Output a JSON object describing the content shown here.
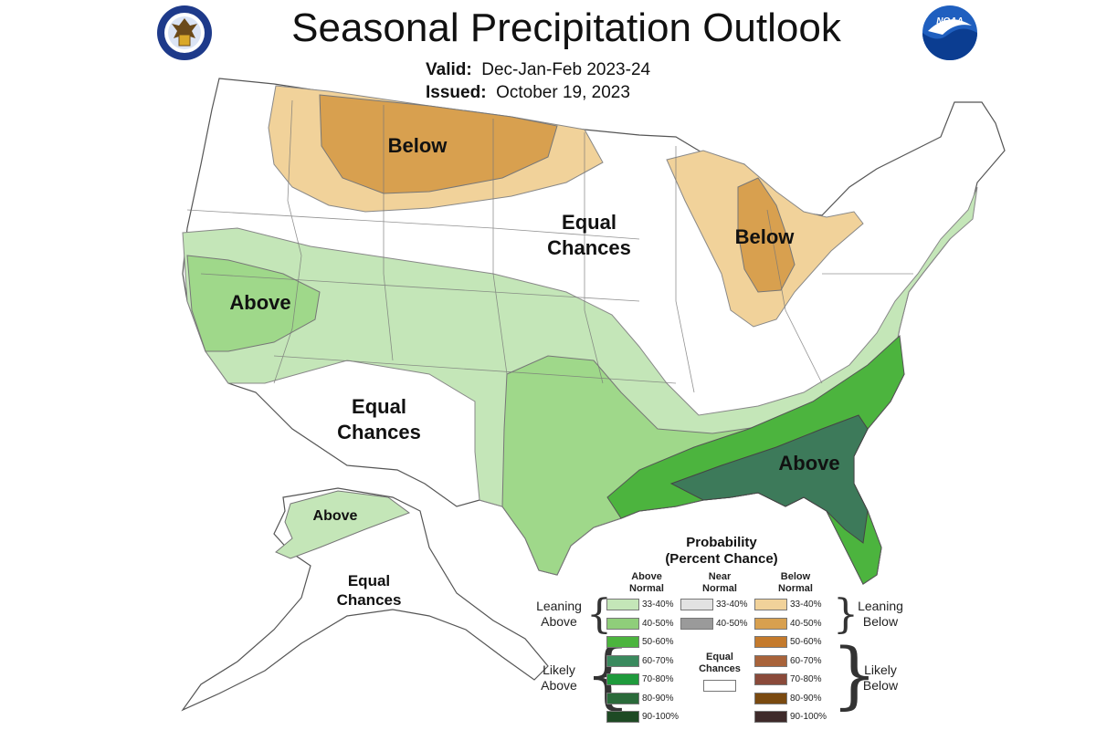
{
  "title": "Seasonal Precipitation Outlook",
  "valid_label": "Valid:",
  "valid_value": "Dec-Jan-Feb 2023-24",
  "issued_label": "Issued:",
  "issued_value": "October 19, 2023",
  "logos": {
    "left": "department-of-commerce-seal",
    "right_text": "NOAA"
  },
  "regions": {
    "below_north": "Below",
    "below_great_lakes": "Below",
    "equal_central_1": "Equal",
    "equal_central_2": "Chances",
    "above_west": "Above",
    "equal_southwest_1": "Equal",
    "equal_southwest_2": "Chances",
    "above_southeast": "Above",
    "above_alaska": "Above",
    "equal_alaska_1": "Equal",
    "equal_alaska_2": "Chances"
  },
  "legend": {
    "title_1": "Probability",
    "title_2": "(Percent Chance)",
    "col_above_1": "Above",
    "col_above_2": "Normal",
    "col_near_1": "Near",
    "col_near_2": "Normal",
    "col_below_1": "Below",
    "col_below_2": "Normal",
    "leaning_above_1": "Leaning",
    "leaning_above_2": "Above",
    "likely_above_1": "Likely",
    "likely_above_2": "Above",
    "leaning_below_1": "Leaning",
    "leaning_below_2": "Below",
    "likely_below_1": "Likely",
    "likely_below_2": "Below",
    "equal_1": "Equal",
    "equal_2": "Chances",
    "above": [
      {
        "label": "33-40%",
        "color": "#c4e6b8"
      },
      {
        "label": "40-50%",
        "color": "#8fce7a"
      },
      {
        "label": "50-60%",
        "color": "#4cb43e"
      },
      {
        "label": "60-70%",
        "color": "#3a8a5e"
      },
      {
        "label": "70-80%",
        "color": "#1f9a3c"
      },
      {
        "label": "80-90%",
        "color": "#2a6a3a"
      },
      {
        "label": "90-100%",
        "color": "#1e4a24"
      }
    ],
    "near": [
      {
        "label": "33-40%",
        "color": "#e2e2e2"
      },
      {
        "label": "40-50%",
        "color": "#9a9a9a"
      }
    ],
    "below": [
      {
        "label": "33-40%",
        "color": "#f1d29a"
      },
      {
        "label": "40-50%",
        "color": "#d8a04f"
      },
      {
        "label": "50-60%",
        "color": "#c47a2c"
      },
      {
        "label": "60-70%",
        "color": "#a8633a"
      },
      {
        "label": "70-80%",
        "color": "#8a4a3a"
      },
      {
        "label": "80-90%",
        "color": "#7a4a10"
      },
      {
        "label": "90-100%",
        "color": "#3e2a2a"
      }
    ]
  },
  "colors": {
    "leaning_above": "#c4e6b8",
    "likely_above_40": "#9fd88a",
    "above_50": "#4cb43e",
    "above_60": "#3d7a5a",
    "leaning_below": "#f1d29a",
    "below_40": "#d8a04f",
    "border": "#555555"
  }
}
